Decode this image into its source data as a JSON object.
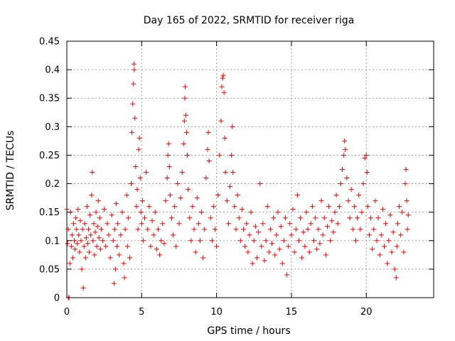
{
  "chart_data": {
    "type": "scatter",
    "title": "Day 165 of 2022, SRMTID for receiver riga",
    "xlabel": "GPS time / hours",
    "ylabel": "SRMTID / TECUs",
    "xlim": [
      0,
      24.5
    ],
    "ylim": [
      0,
      0.45
    ],
    "x_ticks": [
      0,
      5,
      10,
      15,
      20
    ],
    "x_tick_labels": [
      "0",
      "5",
      "10",
      "15",
      "20"
    ],
    "y_ticks": [
      0,
      0.05,
      0.1,
      0.15,
      0.2,
      0.25,
      0.3,
      0.35,
      0.4,
      0.45
    ],
    "y_tick_labels": [
      "0",
      "0.05",
      "0.1",
      "0.15",
      "0.2",
      "0.25",
      "0.3",
      "0.35",
      "0.4",
      "0.45"
    ],
    "grid": true,
    "marker": "+",
    "color": "#ff0000",
    "series": [
      {
        "name": "riga",
        "points": [
          [
            0.0,
            0.155
          ],
          [
            0.05,
            0.095
          ],
          [
            0.1,
            0.12
          ],
          [
            0.1,
            0.0
          ],
          [
            0.15,
            0.0
          ],
          [
            0.2,
            0.06
          ],
          [
            0.25,
            0.15
          ],
          [
            0.3,
            0.09
          ],
          [
            0.35,
            0.11
          ],
          [
            0.4,
            0.07
          ],
          [
            0.45,
            0.13
          ],
          [
            0.5,
            0.1
          ],
          [
            0.55,
            0.085
          ],
          [
            0.6,
            0.14
          ],
          [
            0.65,
            0.12
          ],
          [
            0.7,
            0.095
          ],
          [
            0.75,
            0.155
          ],
          [
            0.8,
            0.11
          ],
          [
            0.85,
            0.08
          ],
          [
            0.9,
            0.135
          ],
          [
            0.95,
            0.1
          ],
          [
            1.0,
            0.05
          ],
          [
            1.05,
            0.12
          ],
          [
            1.1,
            0.017
          ],
          [
            1.15,
            0.09
          ],
          [
            1.2,
            0.13
          ],
          [
            1.25,
            0.07
          ],
          [
            1.3,
            0.105
          ],
          [
            1.35,
            0.16
          ],
          [
            1.4,
            0.095
          ],
          [
            1.45,
            0.12
          ],
          [
            1.5,
            0.08
          ],
          [
            1.55,
            0.145
          ],
          [
            1.6,
            0.11
          ],
          [
            1.65,
            0.18
          ],
          [
            1.7,
            0.22
          ],
          [
            1.75,
            0.1
          ],
          [
            1.8,
            0.13
          ],
          [
            1.85,
            0.075
          ],
          [
            1.9,
            0.115
          ],
          [
            1.95,
            0.15
          ],
          [
            2.0,
            0.09
          ],
          [
            2.05,
            0.125
          ],
          [
            2.1,
            0.17
          ],
          [
            2.15,
            0.105
          ],
          [
            2.2,
            0.14
          ],
          [
            2.25,
            0.085
          ],
          [
            2.3,
            0.12
          ],
          [
            2.4,
            0.1
          ],
          [
            2.5,
            0.155
          ],
          [
            2.6,
            0.09
          ],
          [
            2.7,
            0.13
          ],
          [
            2.8,
            0.11
          ],
          [
            2.9,
            0.07
          ],
          [
            3.0,
            0.145
          ],
          [
            3.1,
            0.1
          ],
          [
            3.15,
            0.025
          ],
          [
            3.2,
            0.12
          ],
          [
            3.25,
            0.05
          ],
          [
            3.3,
            0.165
          ],
          [
            3.35,
            0.09
          ],
          [
            3.4,
            0.13
          ],
          [
            3.5,
            0.075
          ],
          [
            3.6,
            0.11
          ],
          [
            3.7,
            0.15
          ],
          [
            3.8,
            0.06
          ],
          [
            3.85,
            0.035
          ],
          [
            3.9,
            0.12
          ],
          [
            4.0,
            0.18
          ],
          [
            4.05,
            0.09
          ],
          [
            4.1,
            0.14
          ],
          [
            4.2,
            0.07
          ],
          [
            4.3,
            0.2
          ],
          [
            4.35,
            0.29
          ],
          [
            4.4,
            0.34
          ],
          [
            4.45,
            0.375
          ],
          [
            4.48,
            0.41
          ],
          [
            4.5,
            0.4
          ],
          [
            4.55,
            0.315
          ],
          [
            4.6,
            0.23
          ],
          [
            4.65,
            0.16
          ],
          [
            4.7,
            0.19
          ],
          [
            4.75,
            0.12
          ],
          [
            4.8,
            0.26
          ],
          [
            4.85,
            0.28
          ],
          [
            4.9,
            0.21
          ],
          [
            4.95,
            0.15
          ],
          [
            5.0,
            0.13
          ],
          [
            5.05,
            0.17
          ],
          [
            5.1,
            0.1
          ],
          [
            5.2,
            0.14
          ],
          [
            5.3,
            0.22
          ],
          [
            5.4,
            0.12
          ],
          [
            5.5,
            0.16
          ],
          [
            5.6,
            0.09
          ],
          [
            5.7,
            0.135
          ],
          [
            5.8,
            0.11
          ],
          [
            5.9,
            0.15
          ],
          [
            6.0,
            0.085
          ],
          [
            6.1,
            0.12
          ],
          [
            6.2,
            0.075
          ],
          [
            6.3,
            0.1
          ],
          [
            6.4,
            0.13
          ],
          [
            6.5,
            0.095
          ],
          [
            6.6,
            0.17
          ],
          [
            6.7,
            0.21
          ],
          [
            6.75,
            0.25
          ],
          [
            6.8,
            0.27
          ],
          [
            6.85,
            0.23
          ],
          [
            6.9,
            0.18
          ],
          [
            7.0,
            0.14
          ],
          [
            7.1,
            0.11
          ],
          [
            7.2,
            0.16
          ],
          [
            7.3,
            0.09
          ],
          [
            7.4,
            0.2
          ],
          [
            7.5,
            0.13
          ],
          [
            7.6,
            0.175
          ],
          [
            7.7,
            0.22
          ],
          [
            7.8,
            0.27
          ],
          [
            7.85,
            0.31
          ],
          [
            7.88,
            0.35
          ],
          [
            7.9,
            0.37
          ],
          [
            7.95,
            0.32
          ],
          [
            8.0,
            0.29
          ],
          [
            8.05,
            0.25
          ],
          [
            8.1,
            0.19
          ],
          [
            8.2,
            0.14
          ],
          [
            8.3,
            0.1
          ],
          [
            8.4,
            0.16
          ],
          [
            8.5,
            0.12
          ],
          [
            8.6,
            0.08
          ],
          [
            8.7,
            0.175
          ],
          [
            8.8,
            0.13
          ],
          [
            8.9,
            0.1
          ],
          [
            9.0,
            0.15
          ],
          [
            9.1,
            0.07
          ],
          [
            9.2,
            0.12
          ],
          [
            9.3,
            0.21
          ],
          [
            9.4,
            0.26
          ],
          [
            9.45,
            0.29
          ],
          [
            9.5,
            0.24
          ],
          [
            9.6,
            0.14
          ],
          [
            9.7,
            0.1
          ],
          [
            9.8,
            0.16
          ],
          [
            9.9,
            0.12
          ],
          [
            10.0,
            0.09
          ],
          [
            10.1,
            0.18
          ],
          [
            10.2,
            0.25
          ],
          [
            10.3,
            0.31
          ],
          [
            10.35,
            0.37
          ],
          [
            10.4,
            0.385
          ],
          [
            10.45,
            0.39
          ],
          [
            10.5,
            0.36
          ],
          [
            10.55,
            0.28
          ],
          [
            10.6,
            0.22
          ],
          [
            10.7,
            0.17
          ],
          [
            10.8,
            0.13
          ],
          [
            10.9,
            0.195
          ],
          [
            11.0,
            0.25
          ],
          [
            11.05,
            0.3
          ],
          [
            11.1,
            0.22
          ],
          [
            11.2,
            0.16
          ],
          [
            11.3,
            0.12
          ],
          [
            11.4,
            0.18
          ],
          [
            11.5,
            0.14
          ],
          [
            11.6,
            0.1
          ],
          [
            11.7,
            0.155
          ],
          [
            11.8,
            0.12
          ],
          [
            11.9,
            0.09
          ],
          [
            12.0,
            0.13
          ],
          [
            12.1,
            0.08
          ],
          [
            12.2,
            0.11
          ],
          [
            12.3,
            0.15
          ],
          [
            12.4,
            0.06
          ],
          [
            12.5,
            0.1
          ],
          [
            12.6,
            0.125
          ],
          [
            12.7,
            0.07
          ],
          [
            12.8,
            0.115
          ],
          [
            12.9,
            0.2
          ],
          [
            13.0,
            0.09
          ],
          [
            13.1,
            0.13
          ],
          [
            13.2,
            0.065
          ],
          [
            13.3,
            0.1
          ],
          [
            13.4,
            0.16
          ],
          [
            13.5,
            0.08
          ],
          [
            13.6,
            0.12
          ],
          [
            13.7,
            0.095
          ],
          [
            13.8,
            0.14
          ],
          [
            13.9,
            0.075
          ],
          [
            14.0,
            0.11
          ],
          [
            14.1,
            0.15
          ],
          [
            14.2,
            0.085
          ],
          [
            14.3,
            0.125
          ],
          [
            14.4,
            0.06
          ],
          [
            14.5,
            0.1
          ],
          [
            14.6,
            0.14
          ],
          [
            14.7,
            0.04
          ],
          [
            14.8,
            0.09
          ],
          [
            14.9,
            0.13
          ],
          [
            15.0,
            0.11
          ],
          [
            15.1,
            0.155
          ],
          [
            15.2,
            0.08
          ],
          [
            15.3,
            0.12
          ],
          [
            15.4,
            0.18
          ],
          [
            15.5,
            0.1
          ],
          [
            15.6,
            0.14
          ],
          [
            15.7,
            0.07
          ],
          [
            15.8,
            0.115
          ],
          [
            15.9,
            0.09
          ],
          [
            16.0,
            0.15
          ],
          [
            16.1,
            0.12
          ],
          [
            16.2,
            0.08
          ],
          [
            16.3,
            0.13
          ],
          [
            16.4,
            0.16
          ],
          [
            16.5,
            0.1
          ],
          [
            16.6,
            0.14
          ],
          [
            16.7,
            0.085
          ],
          [
            16.8,
            0.12
          ],
          [
            16.9,
            0.095
          ],
          [
            17.0,
            0.17
          ],
          [
            17.1,
            0.11
          ],
          [
            17.2,
            0.14
          ],
          [
            17.3,
            0.075
          ],
          [
            17.4,
            0.125
          ],
          [
            17.5,
            0.16
          ],
          [
            17.6,
            0.1
          ],
          [
            17.7,
            0.135
          ],
          [
            17.8,
            0.115
          ],
          [
            17.9,
            0.15
          ],
          [
            18.0,
            0.18
          ],
          [
            18.1,
            0.13
          ],
          [
            18.2,
            0.16
          ],
          [
            18.3,
            0.2
          ],
          [
            18.4,
            0.225
          ],
          [
            18.5,
            0.25
          ],
          [
            18.55,
            0.275
          ],
          [
            18.6,
            0.26
          ],
          [
            18.7,
            0.21
          ],
          [
            18.8,
            0.17
          ],
          [
            18.9,
            0.14
          ],
          [
            19.0,
            0.19
          ],
          [
            19.1,
            0.12
          ],
          [
            19.2,
            0.16
          ],
          [
            19.3,
            0.1
          ],
          [
            19.4,
            0.14
          ],
          [
            19.5,
            0.18
          ],
          [
            19.6,
            0.12
          ],
          [
            19.7,
            0.15
          ],
          [
            19.8,
            0.2
          ],
          [
            19.9,
            0.245
          ],
          [
            20.0,
            0.25
          ],
          [
            20.05,
            0.22
          ],
          [
            20.1,
            0.16
          ],
          [
            20.2,
            0.11
          ],
          [
            20.3,
            0.14
          ],
          [
            20.4,
            0.085
          ],
          [
            20.5,
            0.12
          ],
          [
            20.6,
            0.17
          ],
          [
            20.7,
            0.1
          ],
          [
            20.8,
            0.14
          ],
          [
            20.9,
            0.075
          ],
          [
            21.0,
            0.11
          ],
          [
            21.1,
            0.155
          ],
          [
            21.2,
            0.09
          ],
          [
            21.3,
            0.13
          ],
          [
            21.4,
            0.06
          ],
          [
            21.5,
            0.1
          ],
          [
            21.6,
            0.145
          ],
          [
            21.7,
            0.08
          ],
          [
            21.8,
            0.115
          ],
          [
            21.9,
            0.05
          ],
          [
            22.0,
            0.035
          ],
          [
            22.05,
            0.09
          ],
          [
            22.1,
            0.13
          ],
          [
            22.2,
            0.16
          ],
          [
            22.3,
            0.11
          ],
          [
            22.4,
            0.15
          ],
          [
            22.5,
            0.08
          ],
          [
            22.6,
            0.2
          ],
          [
            22.65,
            0.225
          ],
          [
            22.7,
            0.17
          ],
          [
            22.75,
            0.12
          ],
          [
            22.8,
            0.145
          ]
        ]
      }
    ]
  }
}
